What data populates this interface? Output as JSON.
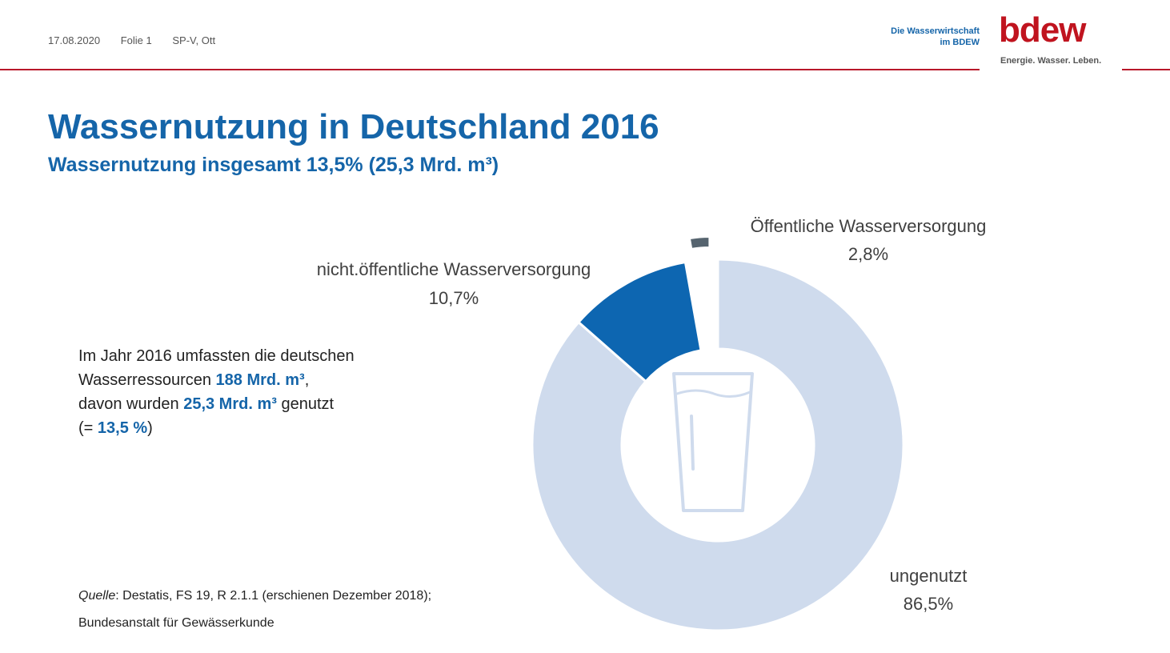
{
  "header": {
    "date": "17.08.2020",
    "slide": "Folie 1",
    "author": "SP-V, Ott",
    "brand_line1": "Die Wasserwirtschaft",
    "brand_line2": "im BDEW",
    "logo": "bdew",
    "logo_tagline": "Energie. Wasser. Leben."
  },
  "title": "Wassernutzung in Deutschland 2016",
  "subtitle": "Wassernutzung insgesamt 13,5% (25,3 Mrd. m³)",
  "body": {
    "line1": "Im Jahr 2016  umfassten die deutschen",
    "line2_prefix": "Wasserressourcen ",
    "line2_value": "188 Mrd. m³",
    "line2_suffix": ",",
    "line3_prefix": "davon wurden ",
    "line3_value": "25,3 Mrd. m³",
    "line3_suffix": " genutzt",
    "line4_prefix": "(= ",
    "line4_value": "13,5  %",
    "line4_suffix": ")"
  },
  "source": {
    "label": "Quelle",
    "line1": ": Destatis, FS 19, R 2.1.1 (erschienen Dezember 2018);",
    "line2": "Bundesanstalt für Gewässerkunde"
  },
  "chart_data": {
    "type": "pie",
    "donut": true,
    "slices": [
      {
        "label": "ungenutzt",
        "value_label": "86,5%",
        "value": 86.5,
        "color": "#cfdbed"
      },
      {
        "label": "nicht.öffentliche Wasserversorgung",
        "value_label": "10,7%",
        "value": 10.7,
        "color": "#0d66b1"
      },
      {
        "label": "Öffentliche Wasserversorgung",
        "value_label": "2,8%",
        "value": 2.8,
        "color": "#56646f",
        "exploded": true
      }
    ],
    "center_icon": "water-glass-icon"
  },
  "colors": {
    "accent": "#1565a9",
    "brand_red": "#c0141f"
  }
}
